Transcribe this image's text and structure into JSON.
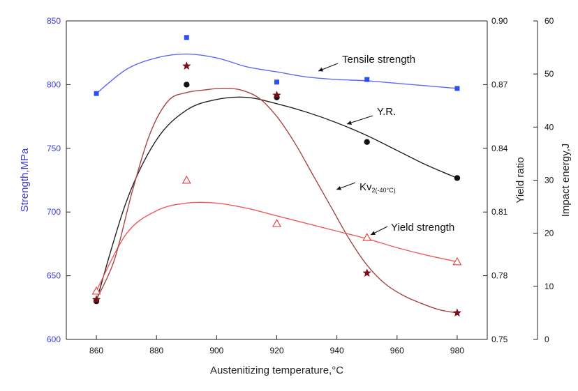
{
  "chart_data": {
    "type": "scatter",
    "x": [
      860,
      890,
      920,
      950,
      980
    ],
    "xlabel": "Austenitizing temperature,°C",
    "xlim": [
      850,
      990
    ],
    "xticks": [
      860,
      880,
      900,
      920,
      940,
      960,
      980
    ],
    "axes": {
      "left": {
        "label": "Strength,MPa",
        "range": [
          600,
          850
        ],
        "ticks": [
          600,
          650,
          700,
          750,
          800,
          850
        ],
        "color": "#3b3bdc"
      },
      "right1": {
        "label": "Yield ratio",
        "range": [
          0.75,
          0.9
        ],
        "ticks": [
          "0.75",
          "0.78",
          "0.81",
          "0.84",
          "0.87",
          "0.90"
        ]
      },
      "right2": {
        "label": "Impact energy,J",
        "range": [
          0,
          60
        ],
        "ticks": [
          0,
          10,
          20,
          30,
          40,
          50,
          60
        ]
      }
    },
    "series": [
      {
        "key": "tensile",
        "name": "Tensile strength",
        "axis": "left",
        "marker": "square",
        "color": "#2f4ff0",
        "line_color": "#5b6cf2",
        "values": [
          793,
          837,
          802,
          804,
          797
        ],
        "fit_curve": [
          [
            860,
            793
          ],
          [
            870,
            812
          ],
          [
            880,
            821
          ],
          [
            890,
            824
          ],
          [
            900,
            821
          ],
          [
            910,
            814
          ],
          [
            920,
            810
          ],
          [
            930,
            806
          ],
          [
            940,
            804
          ],
          [
            950,
            803
          ],
          [
            960,
            801
          ],
          [
            970,
            799
          ],
          [
            980,
            797
          ]
        ]
      },
      {
        "key": "yr",
        "name": "Y.R.",
        "axis": "right1",
        "marker": "circle",
        "color": "#111111",
        "line_color": "#222222",
        "values": [
          0.768,
          0.87,
          0.864,
          0.843,
          0.826
        ],
        "fit_curve": [
          [
            860,
            0.768
          ],
          [
            870,
            0.815
          ],
          [
            880,
            0.844
          ],
          [
            890,
            0.858
          ],
          [
            900,
            0.863
          ],
          [
            910,
            0.864
          ],
          [
            920,
            0.861
          ],
          [
            930,
            0.857
          ],
          [
            940,
            0.852
          ],
          [
            950,
            0.846
          ],
          [
            960,
            0.839
          ],
          [
            970,
            0.832
          ],
          [
            980,
            0.826
          ]
        ]
      },
      {
        "key": "yield",
        "name": "Yield strength",
        "axis": "left",
        "marker": "triangle-open",
        "color": "#e94848",
        "line_color": "#ee5a5a",
        "values": [
          638,
          725,
          691,
          680,
          661
        ],
        "fit_curve": [
          [
            860,
            638
          ],
          [
            870,
            683
          ],
          [
            880,
            701
          ],
          [
            890,
            707
          ],
          [
            900,
            707
          ],
          [
            910,
            703
          ],
          [
            920,
            697
          ],
          [
            930,
            691
          ],
          [
            940,
            685
          ],
          [
            950,
            679
          ],
          [
            960,
            672
          ],
          [
            970,
            666
          ],
          [
            980,
            661
          ]
        ]
      },
      {
        "key": "kv",
        "name": "Kv",
        "name_sub": "2(-40°C)",
        "axis": "right2",
        "marker": "star",
        "color": "#7a0f1a",
        "line_color": "#a64545",
        "values": [
          7.5,
          51.5,
          46,
          12.5,
          5
        ],
        "fit_curve": [
          [
            860,
            7.5
          ],
          [
            866,
            15
          ],
          [
            872,
            28
          ],
          [
            878,
            39
          ],
          [
            884,
            45
          ],
          [
            890,
            46.5
          ],
          [
            896,
            47
          ],
          [
            902,
            47.3
          ],
          [
            908,
            47
          ],
          [
            914,
            45.5
          ],
          [
            920,
            42
          ],
          [
            926,
            37
          ],
          [
            932,
            31
          ],
          [
            938,
            25
          ],
          [
            944,
            19
          ],
          [
            950,
            14
          ],
          [
            956,
            10.5
          ],
          [
            962,
            8.3
          ],
          [
            968,
            6.8
          ],
          [
            974,
            5.6
          ],
          [
            980,
            5
          ]
        ]
      }
    ],
    "annotations": [
      {
        "series": "tensile",
        "text": "Tensile strength"
      },
      {
        "series": "yr",
        "text": "Y.R."
      },
      {
        "series": "kv",
        "text": "Kv",
        "sub": "2(-40°C)"
      },
      {
        "series": "yield",
        "text": "Yield strength"
      }
    ]
  }
}
